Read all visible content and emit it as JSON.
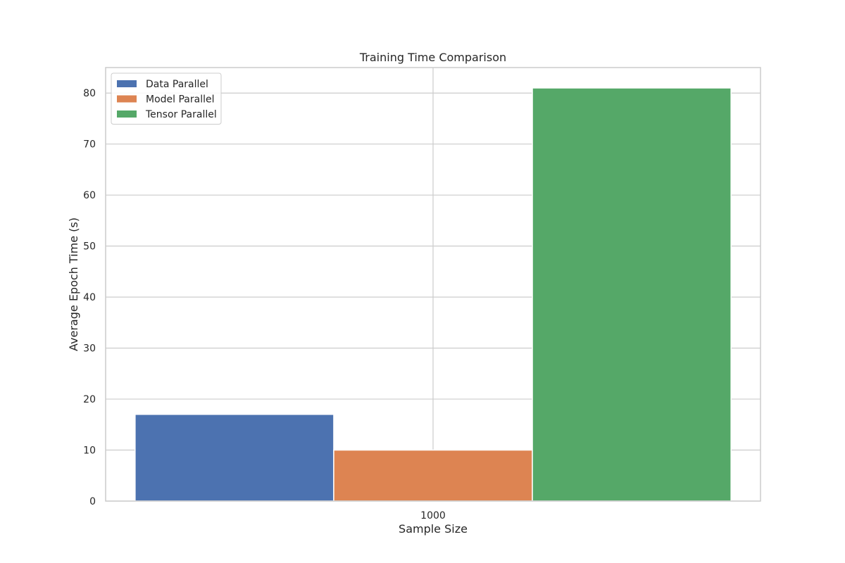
{
  "chart_data": {
    "type": "bar",
    "title": "Training Time Comparison",
    "xlabel": "Sample Size",
    "ylabel": "Average Epoch Time (s)",
    "categories": [
      "1000"
    ],
    "series": [
      {
        "name": "Data Parallel",
        "values": [
          17
        ],
        "color": "#4c72b0"
      },
      {
        "name": "Model Parallel",
        "values": [
          10
        ],
        "color": "#dd8452"
      },
      {
        "name": "Tensor Parallel",
        "values": [
          81
        ],
        "color": "#55a868"
      }
    ],
    "ylim": [
      0,
      85
    ],
    "yticks": [
      0,
      10,
      20,
      30,
      40,
      50,
      60,
      70,
      80
    ],
    "grid": true,
    "legend_position": "upper-left"
  },
  "colors": {
    "grid": "#cccccc",
    "frame": "#cccccc",
    "text": "#262626"
  }
}
